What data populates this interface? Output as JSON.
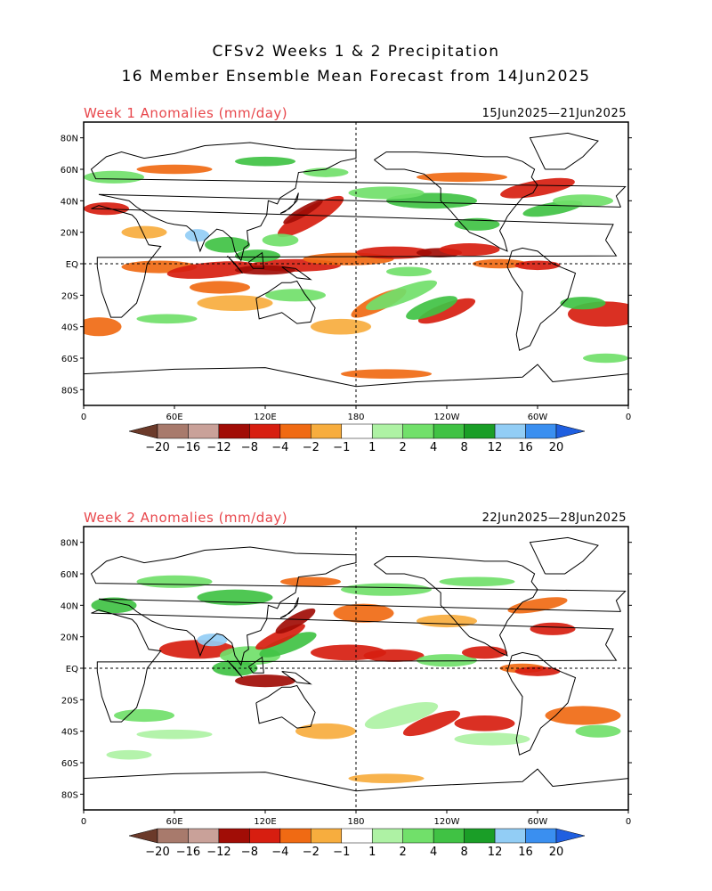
{
  "header": {
    "line1": "CFSv2 Weeks 1 & 2 Precipitation",
    "line2": "16 Member Ensemble Mean Forecast from 14Jun2025"
  },
  "panels": [
    {
      "title": "Week 1 Anomalies (mm/day)",
      "dates": "15Jun2025—21Jun2025"
    },
    {
      "title": "Week 2 Anomalies (mm/day)",
      "dates": "22Jun2025—28Jun2025"
    }
  ],
  "axes": {
    "lat_labels": [
      "80N",
      "60N",
      "40N",
      "20N",
      "EQ",
      "20S",
      "40S",
      "60S",
      "80S"
    ],
    "lon_labels": [
      "0",
      "60E",
      "120E",
      "180",
      "120W",
      "60W",
      "0"
    ]
  },
  "colorbar": {
    "labels": [
      "−20",
      "−16",
      "−12",
      "−8",
      "−4",
      "−2",
      "−1",
      "1",
      "2",
      "4",
      "8",
      "12",
      "16",
      "20"
    ],
    "colors": [
      "#6b3a2a",
      "#a87a6c",
      "#c9a199",
      "#a10d06",
      "#d71e10",
      "#f06a13",
      "#f7ad3e",
      "#ffffff",
      "#aef2a4",
      "#71e06a",
      "#40c244",
      "#1a9e27",
      "#92cdf5",
      "#3a8ff0",
      "#1f5fe0"
    ]
  }
}
